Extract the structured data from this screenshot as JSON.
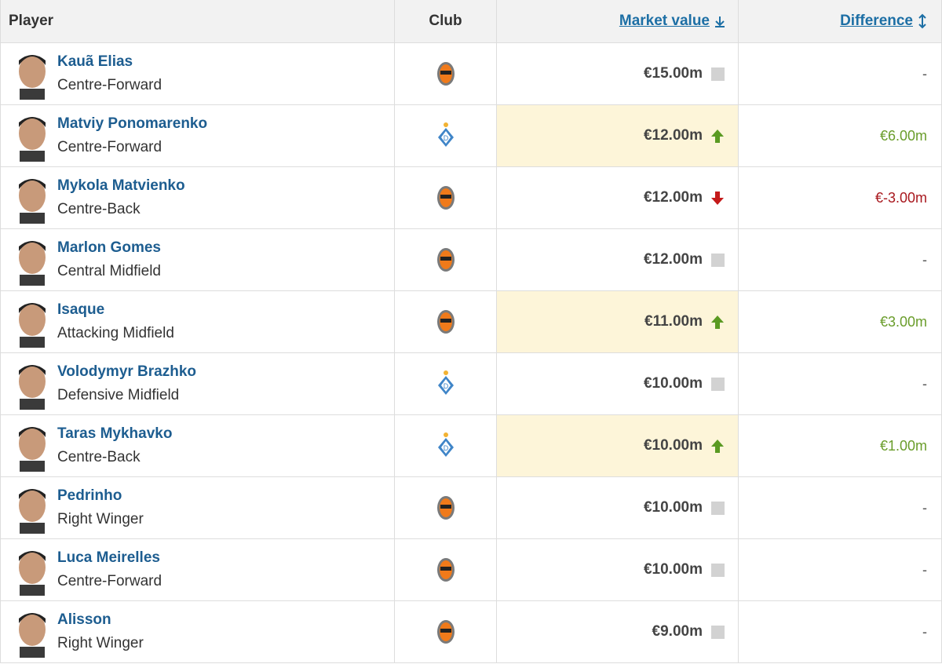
{
  "table": {
    "headers": [
      "Player",
      "Club",
      "Market value",
      "Difference"
    ],
    "rows": [
      {
        "player": "Kauã Elias",
        "position": "Centre-Forward",
        "club": "shakhtar",
        "market_value": "€15.00m",
        "trend": "none",
        "difference": "-"
      },
      {
        "player": "Matviy Ponomarenko",
        "position": "Centre-Forward",
        "club": "dynamo",
        "market_value": "€12.00m",
        "trend": "up",
        "difference": "€6.00m"
      },
      {
        "player": "Mykola Matvienko",
        "position": "Centre-Back",
        "club": "shakhtar",
        "market_value": "€12.00m",
        "trend": "down",
        "difference": "€-3.00m"
      },
      {
        "player": "Marlon Gomes",
        "position": "Central Midfield",
        "club": "shakhtar",
        "market_value": "€12.00m",
        "trend": "none",
        "difference": "-"
      },
      {
        "player": "Isaque",
        "position": "Attacking Midfield",
        "club": "shakhtar",
        "market_value": "€11.00m",
        "trend": "up",
        "difference": "€3.00m"
      },
      {
        "player": "Volodymyr Brazhko",
        "position": "Defensive Midfield",
        "club": "dynamo",
        "market_value": "€10.00m",
        "trend": "none",
        "difference": "-"
      },
      {
        "player": "Taras Mykhavko",
        "position": "Centre-Back",
        "club": "dynamo",
        "market_value": "€10.00m",
        "trend": "up",
        "difference": "€1.00m"
      },
      {
        "player": "Pedrinho",
        "position": "Right Winger",
        "club": "shakhtar",
        "market_value": "€10.00m",
        "trend": "none",
        "difference": "-"
      },
      {
        "player": "Luca Meirelles",
        "position": "Centre-Forward",
        "club": "shakhtar",
        "market_value": "€10.00m",
        "trend": "none",
        "difference": "-"
      },
      {
        "player": "Alisson",
        "position": "Right Winger",
        "club": "shakhtar",
        "market_value": "€9.00m",
        "trend": "none",
        "difference": "-"
      }
    ]
  }
}
